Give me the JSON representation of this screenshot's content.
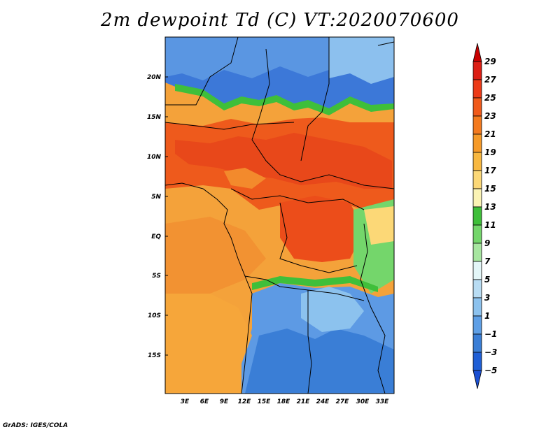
{
  "title": "2m dewpoint Td (C) VT:2020070600",
  "footer": "GrADS: IGES/COLA",
  "map": {
    "lat_labels": [
      "20N",
      "15N",
      "10N",
      "5N",
      "EQ",
      "5S",
      "10S",
      "15S"
    ],
    "lon_labels": [
      "3E",
      "6E",
      "9E",
      "12E",
      "15E",
      "18E",
      "21E",
      "24E",
      "27E",
      "30E",
      "33E"
    ],
    "field_bands": [
      {
        "lat_range": [
          17,
          24
        ],
        "value": "<0",
        "color": "#3c78d8"
      },
      {
        "lat_range": [
          15,
          17
        ],
        "value": "13-19",
        "color": "#f4a23a"
      },
      {
        "lat_range": [
          3,
          15
        ],
        "value": "21-25",
        "color": "#ee5a1c"
      },
      {
        "lat_range": [
          -5,
          3
        ],
        "value": "19-23",
        "color": "#f08d2e"
      },
      {
        "lat_range": [
          -20,
          -7
        ],
        "value": "1-5",
        "color": "#5d9ae4"
      }
    ]
  },
  "colorbar": {
    "labels": [
      "29",
      "27",
      "25",
      "23",
      "21",
      "19",
      "17",
      "15",
      "13",
      "11",
      "9",
      "7",
      "5",
      "3",
      "1",
      "−1",
      "−3",
      "−5"
    ],
    "colors": [
      "#c80000",
      "#dc1e14",
      "#ec3a17",
      "#f05a1a",
      "#f47a1e",
      "#f69a28",
      "#f8b840",
      "#fcd877",
      "#fbf3b4",
      "#3fbf3a",
      "#74d66b",
      "#a7e6a0",
      "#e3f6f8",
      "#b8dcf3",
      "#8cc2ee",
      "#5e9fe6",
      "#3a7ed6",
      "#1f5fd6",
      "#1a4fd3"
    ]
  }
}
